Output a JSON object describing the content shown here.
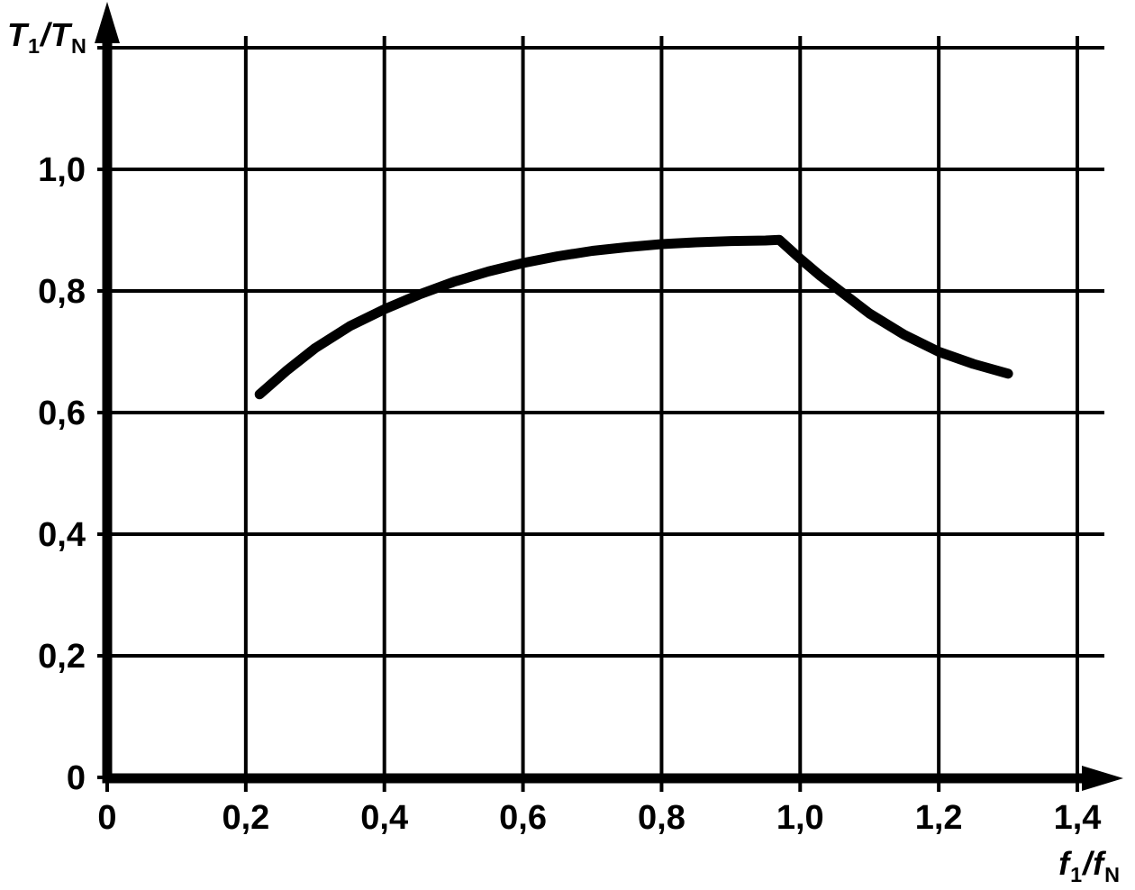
{
  "figure": {
    "background": "#ffffff",
    "ink_color": "#000000"
  },
  "chart_data": {
    "type": "line",
    "title": "",
    "xlabel": "f1/fN",
    "ylabel": "T1/TN",
    "xlabel_parts": {
      "base1": "f",
      "sub1": "1",
      "slash": "/",
      "base2": "f",
      "sub2": "N"
    },
    "ylabel_parts": {
      "base1": "T",
      "sub1": "1",
      "slash": "/",
      "base2": "T",
      "sub2": "N"
    },
    "xlim": [
      0,
      1.4
    ],
    "ylim": [
      0,
      1.2
    ],
    "grid": true,
    "decimal_separator": ",",
    "x_ticks": [
      "0",
      "0,2",
      "0,4",
      "0,6",
      "0,8",
      "1,0",
      "1,2",
      "1,4"
    ],
    "x_tick_values": [
      0,
      0.2,
      0.4,
      0.6,
      0.8,
      1.0,
      1.2,
      1.4
    ],
    "y_ticks": [
      "0",
      "0,2",
      "0,4",
      "0,6",
      "0,8",
      "1,0"
    ],
    "y_tick_values": [
      0,
      0.2,
      0.4,
      0.6,
      0.8,
      1.0
    ],
    "y_grid_values": [
      0,
      0.2,
      0.4,
      0.6,
      0.8,
      1.0,
      1.2
    ],
    "series": [
      {
        "points": [
          [
            0.22,
            0.63
          ],
          [
            0.26,
            0.67
          ],
          [
            0.3,
            0.706
          ],
          [
            0.35,
            0.742
          ],
          [
            0.4,
            0.77
          ],
          [
            0.45,
            0.794
          ],
          [
            0.5,
            0.815
          ],
          [
            0.55,
            0.832
          ],
          [
            0.6,
            0.846
          ],
          [
            0.65,
            0.857
          ],
          [
            0.7,
            0.866
          ],
          [
            0.75,
            0.872
          ],
          [
            0.8,
            0.877
          ],
          [
            0.85,
            0.88
          ],
          [
            0.9,
            0.882
          ],
          [
            0.95,
            0.883
          ],
          [
            0.97,
            0.884
          ],
          [
            1.0,
            0.853
          ],
          [
            1.03,
            0.824
          ],
          [
            1.06,
            0.798
          ],
          [
            1.1,
            0.763
          ],
          [
            1.15,
            0.728
          ],
          [
            1.2,
            0.7
          ],
          [
            1.25,
            0.68
          ],
          [
            1.3,
            0.664
          ]
        ]
      }
    ]
  }
}
